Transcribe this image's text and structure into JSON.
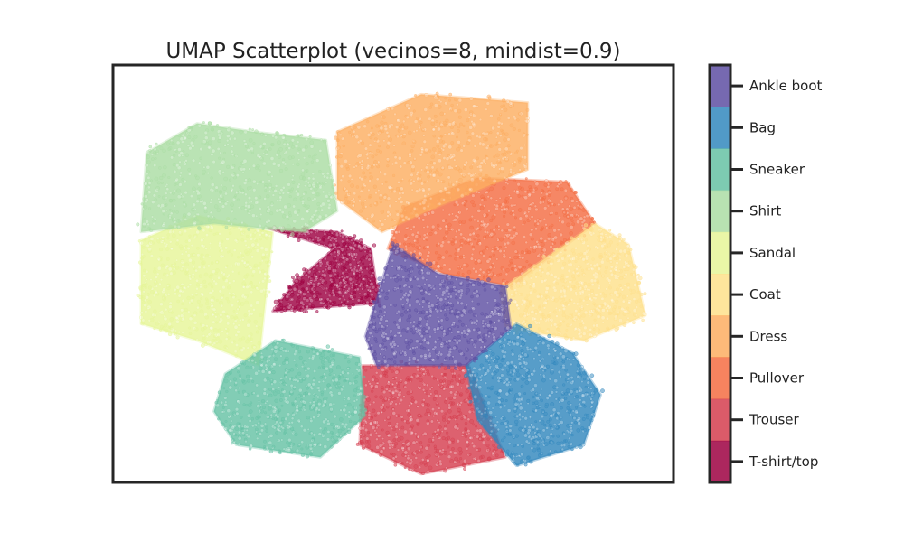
{
  "chart_data": {
    "type": "scatter",
    "title": "UMAP Scatterplot (vecinos=8, mindist=0.9)",
    "xlabel": "",
    "ylabel": "",
    "axes_ticks": false,
    "grid": false,
    "colorbar": {
      "position": "right",
      "labels": [
        "T-shirt/top",
        "Trouser",
        "Pullover",
        "Dress",
        "Coat",
        "Sandal",
        "Shirt",
        "Sneaker",
        "Bag",
        "Ankle boot"
      ],
      "colors": [
        "#9e0142",
        "#d53e4f",
        "#f46d43",
        "#fdae61",
        "#fee08b",
        "#e6f598",
        "#abdda4",
        "#66c2a5",
        "#3288bd",
        "#5e4fa2"
      ]
    },
    "series": [
      {
        "name": "T-shirt/top",
        "region": [
          [
            0.275,
            0.39
          ],
          [
            0.395,
            0.44
          ],
          [
            0.325,
            0.52
          ],
          [
            0.285,
            0.59
          ],
          [
            0.475,
            0.57
          ],
          [
            0.46,
            0.44
          ],
          [
            0.4,
            0.4
          ]
        ],
        "centroid": [
          0.33,
          0.52
        ]
      },
      {
        "name": "Trouser",
        "region": [
          [
            0.445,
            0.72
          ],
          [
            0.635,
            0.72
          ],
          [
            0.7,
            0.94
          ],
          [
            0.55,
            0.98
          ],
          [
            0.44,
            0.91
          ]
        ],
        "centroid": [
          0.56,
          0.84
        ]
      },
      {
        "name": "Pullover",
        "region": [
          [
            0.52,
            0.34
          ],
          [
            0.65,
            0.27
          ],
          [
            0.81,
            0.28
          ],
          [
            0.86,
            0.38
          ],
          [
            0.71,
            0.53
          ],
          [
            0.59,
            0.5
          ],
          [
            0.49,
            0.44
          ]
        ],
        "centroid": [
          0.66,
          0.4
        ]
      },
      {
        "name": "Dress",
        "region": [
          [
            0.4,
            0.16
          ],
          [
            0.55,
            0.07
          ],
          [
            0.74,
            0.09
          ],
          [
            0.74,
            0.25
          ],
          [
            0.56,
            0.35
          ],
          [
            0.48,
            0.4
          ],
          [
            0.4,
            0.32
          ]
        ],
        "centroid": [
          0.59,
          0.22
        ]
      },
      {
        "name": "Coat",
        "region": [
          [
            0.69,
            0.54
          ],
          [
            0.86,
            0.38
          ],
          [
            0.92,
            0.43
          ],
          [
            0.95,
            0.6
          ],
          [
            0.84,
            0.66
          ],
          [
            0.7,
            0.63
          ]
        ],
        "centroid": [
          0.83,
          0.55
        ]
      },
      {
        "name": "Sandal",
        "region": [
          [
            0.05,
            0.42
          ],
          [
            0.15,
            0.36
          ],
          [
            0.285,
            0.4
          ],
          [
            0.26,
            0.72
          ],
          [
            0.15,
            0.66
          ],
          [
            0.05,
            0.62
          ]
        ],
        "centroid": [
          0.16,
          0.53
        ]
      },
      {
        "name": "Shirt",
        "region": [
          [
            0.06,
            0.21
          ],
          [
            0.15,
            0.14
          ],
          [
            0.25,
            0.16
          ],
          [
            0.38,
            0.18
          ],
          [
            0.4,
            0.35
          ],
          [
            0.34,
            0.4
          ],
          [
            0.18,
            0.38
          ],
          [
            0.05,
            0.4
          ]
        ],
        "centroid": [
          0.22,
          0.27
        ]
      },
      {
        "name": "Sneaker",
        "region": [
          [
            0.2,
            0.74
          ],
          [
            0.29,
            0.66
          ],
          [
            0.44,
            0.7
          ],
          [
            0.45,
            0.84
          ],
          [
            0.37,
            0.94
          ],
          [
            0.22,
            0.91
          ],
          [
            0.18,
            0.83
          ]
        ],
        "centroid": [
          0.31,
          0.81
        ]
      },
      {
        "name": "Bag",
        "region": [
          [
            0.63,
            0.72
          ],
          [
            0.72,
            0.62
          ],
          [
            0.82,
            0.69
          ],
          [
            0.87,
            0.79
          ],
          [
            0.84,
            0.91
          ],
          [
            0.72,
            0.96
          ],
          [
            0.65,
            0.85
          ]
        ],
        "centroid": [
          0.75,
          0.82
        ]
      },
      {
        "name": "Ankle boot",
        "region": [
          [
            0.47,
            0.56
          ],
          [
            0.5,
            0.43
          ],
          [
            0.58,
            0.5
          ],
          [
            0.7,
            0.53
          ],
          [
            0.71,
            0.63
          ],
          [
            0.63,
            0.72
          ],
          [
            0.47,
            0.72
          ],
          [
            0.45,
            0.65
          ]
        ],
        "centroid": [
          0.58,
          0.61
        ]
      }
    ]
  }
}
